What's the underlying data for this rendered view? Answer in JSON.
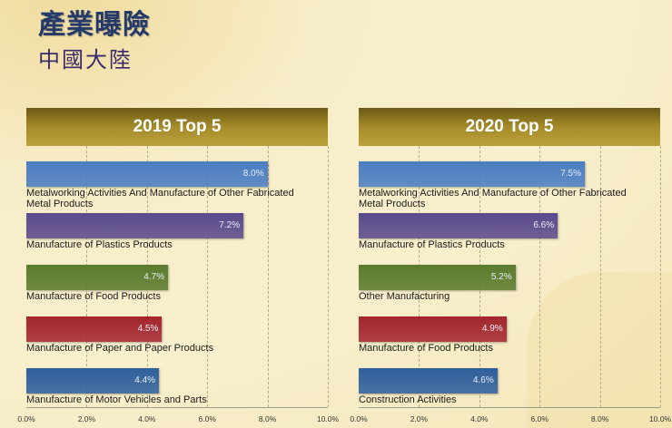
{
  "title": "產業曝險",
  "subtitle": "中國大陸",
  "chart_data": [
    {
      "type": "bar",
      "orientation": "horizontal",
      "title": "2019 Top 5",
      "xlim": [
        0,
        10
      ],
      "ticks": [
        "0.0%",
        "2.0%",
        "4.0%",
        "6.0%",
        "8.0%",
        "10.0%"
      ],
      "categories": [
        "Metalworking Activities And Manufacture of Other Fabricated Metal Products",
        "Manufacture of Plastics Products",
        "Manufacture of Food Products",
        "Manufacture of Paper and Paper Products",
        "Manufacture of Motor Vehicles and Parts"
      ],
      "values": [
        8.0,
        7.2,
        4.7,
        4.5,
        4.4
      ],
      "labels": [
        "8.0%",
        "7.2%",
        "4.7%",
        "4.5%",
        "4.4%"
      ],
      "colors": [
        "#4a7dc2",
        "#5b4a8c",
        "#5a7b2c",
        "#a3262f",
        "#2f5f9c"
      ]
    },
    {
      "type": "bar",
      "orientation": "horizontal",
      "title": "2020 Top 5",
      "xlim": [
        0,
        10
      ],
      "ticks": [
        "0.0%",
        "2.0%",
        "4.0%",
        "6.0%",
        "8.0%",
        "10.0%"
      ],
      "categories": [
        "Metalworking Activities And Manufacture of Other Fabricated Metal Products",
        "Manufacture of Plastics Products",
        "Other Manufacturing",
        "Manufacture of Food Products",
        "Construction Activities"
      ],
      "values": [
        7.5,
        6.6,
        5.2,
        4.9,
        4.6
      ],
      "labels": [
        "7.5%",
        "6.6%",
        "5.2%",
        "4.9%",
        "4.6%"
      ],
      "colors": [
        "#4a7dc2",
        "#5b4a8c",
        "#5a7b2c",
        "#a3262f",
        "#2f5f9c"
      ]
    }
  ]
}
